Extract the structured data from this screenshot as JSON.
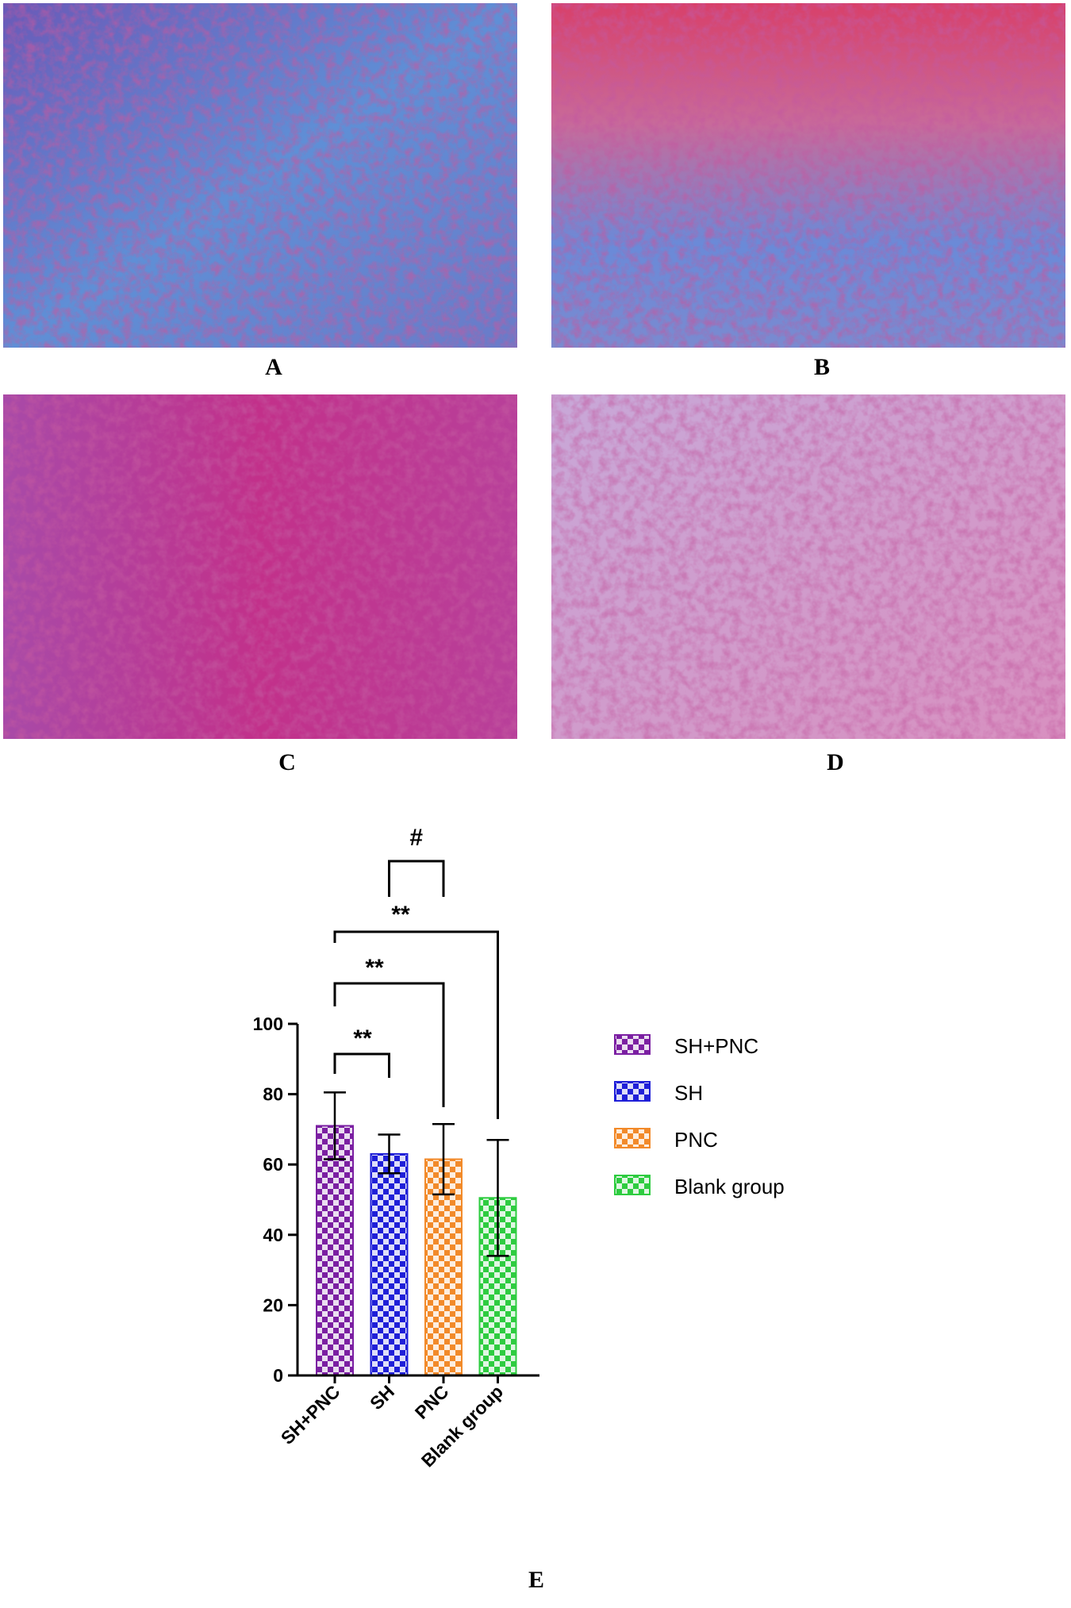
{
  "panels": [
    {
      "label": "A"
    },
    {
      "label": "B"
    },
    {
      "label": "C"
    },
    {
      "label": "D"
    }
  ],
  "figure_label": "E",
  "chart_data": {
    "type": "bar",
    "categories": [
      "SH+PNC",
      "SH",
      "PNC",
      "Blank group"
    ],
    "series": [
      {
        "name": "SH+PNC",
        "color": "#7b1fa2"
      },
      {
        "name": "SH",
        "color": "#1f1fd8"
      },
      {
        "name": "PNC",
        "color": "#f28a2a"
      },
      {
        "name": "Blank group",
        "color": "#2ecc40"
      }
    ],
    "values": [
      71,
      63,
      61.5,
      50.5
    ],
    "errors": [
      9.5,
      5.5,
      10,
      16.5
    ],
    "ylim": [
      0,
      100
    ],
    "yticks": [
      0,
      20,
      40,
      60,
      80,
      100
    ],
    "annotations": [
      {
        "text": "**",
        "between": [
          "SH+PNC",
          "SH"
        ]
      },
      {
        "text": "**",
        "between": [
          "SH+PNC",
          "PNC"
        ]
      },
      {
        "text": "**",
        "between": [
          "SH+PNC",
          "Blank group"
        ]
      },
      {
        "text": "#",
        "between": [
          "SH",
          "PNC"
        ]
      }
    ]
  }
}
